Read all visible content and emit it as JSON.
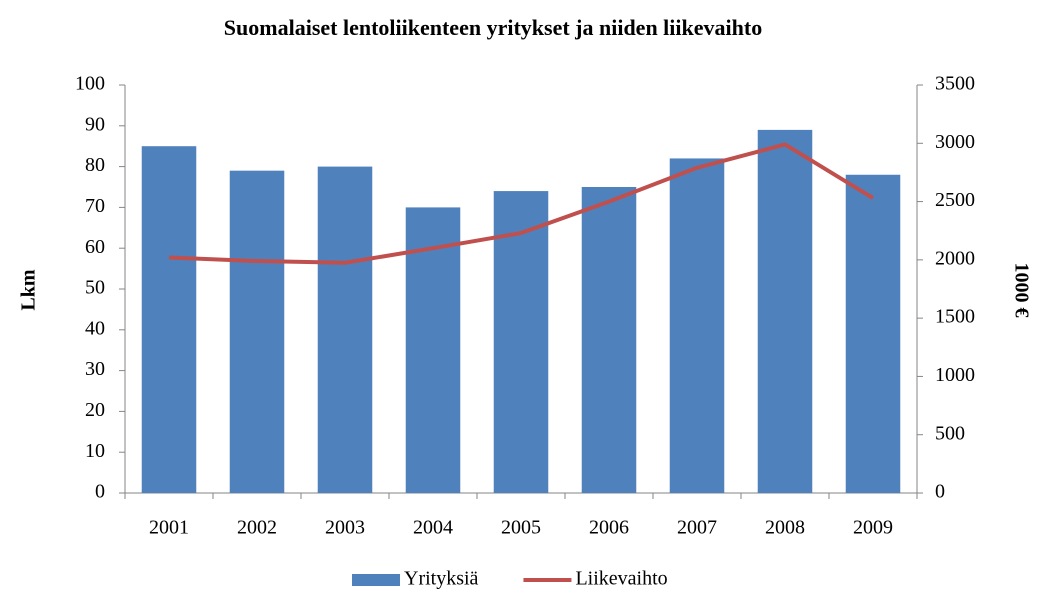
{
  "chart_data": {
    "type": "bar",
    "title": "Suomalaiset lentoliikenteen yritykset ja niiden liikevaihto",
    "y_label": "Lkm",
    "y2_label": "1000 €",
    "categories": [
      "2001",
      "2002",
      "2003",
      "2004",
      "2005",
      "2006",
      "2007",
      "2008",
      "2009"
    ],
    "series": [
      {
        "name": "Yrityksiä",
        "type": "bar",
        "color": "#4f81bd",
        "values": [
          85,
          79,
          80,
          70,
          74,
          75,
          82,
          89,
          78
        ]
      },
      {
        "name": "Liikevaihto",
        "type": "line",
        "axis": "y2",
        "color": "#c0504d",
        "values": [
          2020,
          1990,
          1975,
          2100,
          2230,
          2500,
          2790,
          2990,
          2530
        ]
      }
    ],
    "ylim": [
      0,
      100
    ],
    "yticks": [
      0,
      10,
      20,
      30,
      40,
      50,
      60,
      70,
      80,
      90,
      100
    ],
    "y2lim": [
      0,
      3500
    ],
    "y2ticks": [
      0,
      500,
      1000,
      1500,
      2000,
      2500,
      3000,
      3500
    ],
    "grid": false,
    "legend": "bottom"
  }
}
